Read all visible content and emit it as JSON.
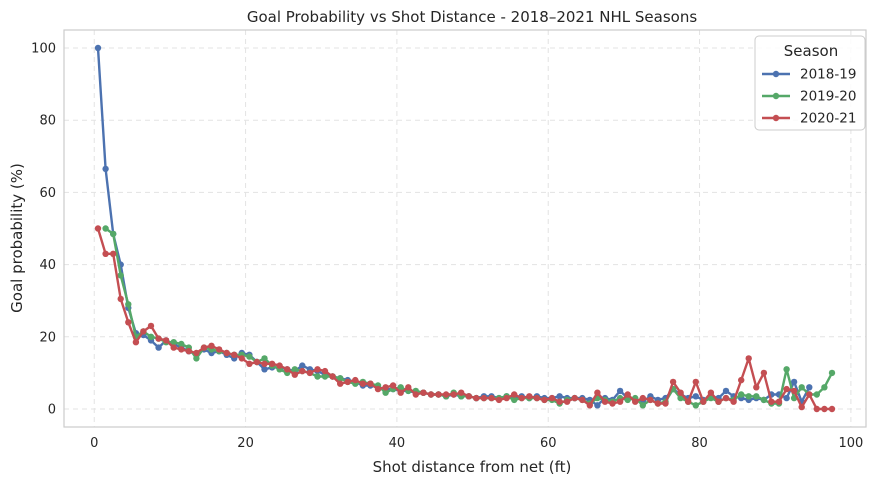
{
  "chart_data": {
    "type": "line",
    "title": "Goal Probability vs Shot Distance - 2018–2021 NHL Seasons",
    "xlabel": "Shot distance from net (ft)",
    "ylabel": "Goal probability (%)",
    "xlim": [
      -4,
      102
    ],
    "ylim": [
      -5,
      105
    ],
    "xticks": [
      0,
      20,
      40,
      60,
      80,
      100
    ],
    "yticks": [
      0,
      20,
      40,
      60,
      80,
      100
    ],
    "grid": true,
    "legend": {
      "title": "Season",
      "position": "top-right"
    },
    "series": [
      {
        "name": "2018-19",
        "color": "#4c72b0",
        "x": [
          0.5,
          1.5,
          2.5,
          3.5,
          4.5,
          5.5,
          6.5,
          7.5,
          8.5,
          9.5,
          10.5,
          11.5,
          12.5,
          13.5,
          14.5,
          15.5,
          16.5,
          17.5,
          18.5,
          19.5,
          20.5,
          21.5,
          22.5,
          23.5,
          24.5,
          25.5,
          26.5,
          27.5,
          28.5,
          29.5,
          30.5,
          31.5,
          32.5,
          33.5,
          34.5,
          35.5,
          36.5,
          37.5,
          38.5,
          39.5,
          40.5,
          41.5,
          42.5,
          43.5,
          44.5,
          45.5,
          46.5,
          47.5,
          48.5,
          49.5,
          50.5,
          51.5,
          52.5,
          53.5,
          54.5,
          55.5,
          56.5,
          57.5,
          58.5,
          59.5,
          60.5,
          61.5,
          62.5,
          63.5,
          64.5,
          65.5,
          66.5,
          67.5,
          68.5,
          69.5,
          70.5,
          71.5,
          72.5,
          73.5,
          74.5,
          75.5,
          76.5,
          77.5,
          78.5,
          79.5,
          80.5,
          81.5,
          82.5,
          83.5,
          84.5,
          85.5,
          86.5,
          87.5,
          88.5,
          89.5,
          90.5,
          91.5,
          92.5,
          93.5,
          94.5
        ],
        "y": [
          100,
          66.5,
          48.5,
          40,
          28,
          21,
          20.5,
          19,
          17,
          19,
          18,
          17,
          16,
          15,
          16.5,
          15.5,
          16,
          15,
          14,
          15.5,
          15,
          13,
          11,
          11.5,
          11.5,
          11,
          10.5,
          12,
          11,
          10.5,
          9.5,
          9,
          8.5,
          8,
          7.5,
          6.5,
          6.5,
          6,
          5.5,
          5.5,
          5,
          5,
          4.5,
          4.5,
          4,
          4,
          3.5,
          4,
          3.5,
          3.5,
          3,
          3.5,
          3.5,
          3,
          3.5,
          3,
          3.5,
          3,
          3.5,
          3,
          3,
          3.5,
          3,
          3,
          3,
          2.5,
          1,
          3,
          2.5,
          5,
          3,
          2.5,
          2,
          3.5,
          2.5,
          3,
          5.5,
          4,
          3,
          3.5,
          2.5,
          3.5,
          3,
          5,
          3.5,
          3,
          2.5,
          3,
          2.5,
          4,
          4,
          3,
          7.5,
          2,
          6
        ]
      },
      {
        "name": "2019-20",
        "color": "#55a868",
        "x": [
          1.5,
          2.5,
          3.5,
          4.5,
          5.5,
          6.5,
          7.5,
          8.5,
          9.5,
          10.5,
          11.5,
          12.5,
          13.5,
          14.5,
          15.5,
          16.5,
          17.5,
          18.5,
          19.5,
          20.5,
          21.5,
          22.5,
          23.5,
          24.5,
          25.5,
          26.5,
          27.5,
          28.5,
          29.5,
          30.5,
          31.5,
          32.5,
          33.5,
          34.5,
          35.5,
          36.5,
          37.5,
          38.5,
          39.5,
          40.5,
          41.5,
          42.5,
          43.5,
          44.5,
          45.5,
          46.5,
          47.5,
          48.5,
          49.5,
          50.5,
          51.5,
          52.5,
          53.5,
          54.5,
          55.5,
          56.5,
          57.5,
          58.5,
          59.5,
          60.5,
          61.5,
          62.5,
          63.5,
          64.5,
          65.5,
          66.5,
          67.5,
          68.5,
          69.5,
          70.5,
          71.5,
          72.5,
          73.5,
          74.5,
          75.5,
          76.5,
          77.5,
          78.5,
          79.5,
          80.5,
          81.5,
          82.5,
          83.5,
          84.5,
          85.5,
          86.5,
          87.5,
          88.5,
          89.5,
          90.5,
          91.5,
          92.5,
          93.5,
          94.5,
          95.5,
          96.5,
          97.5
        ],
        "y": [
          50,
          48.5,
          37,
          29,
          20,
          21.5,
          20,
          19.5,
          18.5,
          18.5,
          18,
          17,
          14,
          17,
          16.5,
          16,
          15.5,
          15,
          15,
          14.5,
          13,
          14,
          12,
          11,
          10,
          11,
          10.5,
          10,
          9,
          9,
          9,
          8.5,
          7.5,
          7,
          7.5,
          7,
          6.5,
          4.5,
          5.5,
          6,
          5,
          5,
          4.5,
          4,
          4,
          3.5,
          4.5,
          3.5,
          3.5,
          3,
          3,
          3,
          3,
          3.5,
          2.5,
          3,
          3,
          3,
          2.5,
          2.5,
          1.5,
          2.5,
          3,
          2.5,
          1.5,
          3,
          2.5,
          2,
          3,
          2.5,
          3,
          1,
          2.5,
          1.5,
          2,
          5.5,
          3,
          2,
          1,
          2,
          3,
          2,
          3,
          2.5,
          4,
          3.5,
          3.5,
          2.5,
          1.5,
          1.5,
          11,
          3,
          6,
          4,
          4,
          6,
          10
        ]
      },
      {
        "name": "2020-21",
        "color": "#c44e52",
        "x": [
          0.5,
          1.5,
          2.5,
          3.5,
          4.5,
          5.5,
          6.5,
          7.5,
          8.5,
          9.5,
          10.5,
          11.5,
          12.5,
          13.5,
          14.5,
          15.5,
          16.5,
          17.5,
          18.5,
          19.5,
          20.5,
          21.5,
          22.5,
          23.5,
          24.5,
          25.5,
          26.5,
          27.5,
          28.5,
          29.5,
          30.5,
          31.5,
          32.5,
          33.5,
          34.5,
          35.5,
          36.5,
          37.5,
          38.5,
          39.5,
          40.5,
          41.5,
          42.5,
          43.5,
          44.5,
          45.5,
          46.5,
          47.5,
          48.5,
          49.5,
          50.5,
          51.5,
          52.5,
          53.5,
          54.5,
          55.5,
          56.5,
          57.5,
          58.5,
          59.5,
          60.5,
          61.5,
          62.5,
          63.5,
          64.5,
          65.5,
          66.5,
          67.5,
          68.5,
          69.5,
          70.5,
          71.5,
          72.5,
          73.5,
          74.5,
          75.5,
          76.5,
          77.5,
          78.5,
          79.5,
          80.5,
          81.5,
          82.5,
          83.5,
          84.5,
          85.5,
          86.5,
          87.5,
          88.5,
          89.5,
          90.5,
          91.5,
          92.5,
          93.5,
          94.5,
          95.5,
          96.5,
          97.5
        ],
        "y": [
          50,
          43,
          43,
          30.5,
          24,
          18.5,
          21.5,
          23,
          19.5,
          19,
          17,
          16.5,
          16,
          15.5,
          17,
          17.5,
          16.5,
          15.5,
          15,
          14,
          12.5,
          13,
          12.5,
          12.5,
          12,
          11,
          9.5,
          10.5,
          10,
          11,
          10.5,
          9,
          7,
          7.5,
          8,
          7,
          7,
          5.5,
          6,
          6.5,
          4.5,
          6,
          4,
          4.5,
          4,
          4,
          4,
          4,
          4.5,
          3.5,
          3,
          3,
          3,
          2.5,
          3,
          4,
          3,
          3.5,
          3,
          2.5,
          3,
          2,
          2,
          3,
          2.5,
          1,
          4.5,
          2,
          1.5,
          2,
          4,
          2,
          3,
          2.5,
          1.5,
          1.5,
          7.5,
          4.5,
          2,
          7.5,
          2,
          4.5,
          2,
          3,
          2,
          8,
          14,
          6,
          10,
          2,
          2,
          5.5,
          5,
          0.5,
          4,
          0,
          0,
          0
        ]
      }
    ]
  }
}
